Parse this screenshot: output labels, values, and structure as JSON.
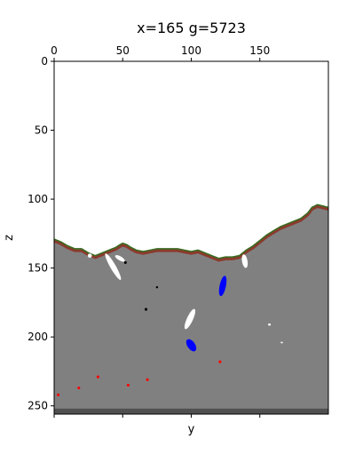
{
  "chart_data": {
    "type": "heatmap",
    "title": "x=165 g=5723",
    "xlabel": "y",
    "ylabel": "z",
    "x_axis_position": "top",
    "x_axis_extent": [
      0,
      200
    ],
    "y_axis_extent": [
      256,
      0
    ],
    "y_inverted": true,
    "x_ticks": [
      0,
      50,
      100,
      150
    ],
    "y_ticks": [
      0,
      50,
      100,
      150,
      200,
      250
    ],
    "grid": false,
    "legend": "none",
    "colors": {
      "air": "#ffffff",
      "stone": "#808080",
      "dirt": "#8b3a2e",
      "grass": "#3a6b1f",
      "ore_blue": "#0000ff",
      "ore_red": "#ff0000",
      "cave": "#ffffff",
      "void": "#000000",
      "bedrock": "#505050"
    },
    "surface_profile": [
      [
        0,
        129
      ],
      [
        5,
        131
      ],
      [
        10,
        134
      ],
      [
        15,
        136
      ],
      [
        20,
        136
      ],
      [
        25,
        139
      ],
      [
        30,
        141
      ],
      [
        35,
        139
      ],
      [
        40,
        137
      ],
      [
        45,
        135
      ],
      [
        48,
        133
      ],
      [
        50,
        132
      ],
      [
        53,
        133
      ],
      [
        56,
        135
      ],
      [
        60,
        137
      ],
      [
        65,
        138
      ],
      [
        70,
        137
      ],
      [
        75,
        136
      ],
      [
        80,
        136
      ],
      [
        85,
        136
      ],
      [
        90,
        136
      ],
      [
        95,
        137
      ],
      [
        100,
        138
      ],
      [
        105,
        137
      ],
      [
        110,
        139
      ],
      [
        115,
        141
      ],
      [
        120,
        143
      ],
      [
        125,
        142
      ],
      [
        130,
        142
      ],
      [
        135,
        141
      ],
      [
        140,
        137
      ],
      [
        145,
        134
      ],
      [
        150,
        130
      ],
      [
        155,
        126
      ],
      [
        160,
        123
      ],
      [
        165,
        120
      ],
      [
        170,
        118
      ],
      [
        175,
        116
      ],
      [
        180,
        114
      ],
      [
        185,
        110
      ],
      [
        188,
        106
      ],
      [
        192,
        104
      ],
      [
        196,
        105
      ],
      [
        200,
        106
      ]
    ],
    "features": [
      {
        "kind": "cave",
        "y": 43,
        "z": 149,
        "ry": 2,
        "rz": 11,
        "angle": -30
      },
      {
        "kind": "cave",
        "y": 48,
        "z": 143,
        "ry": 1.5,
        "rz": 4,
        "angle": -60
      },
      {
        "kind": "cave",
        "y": 99,
        "z": 187,
        "ry": 2.2,
        "rz": 8,
        "angle": 25
      },
      {
        "kind": "cave",
        "y": 139,
        "z": 145,
        "ry": 2,
        "rz": 5,
        "angle": -10
      },
      {
        "kind": "cave",
        "y": 26,
        "z": 141,
        "ry": 1.5,
        "rz": 1.5,
        "angle": 0
      },
      {
        "kind": "cave",
        "y": 157,
        "z": 191,
        "ry": 1,
        "rz": 0.8,
        "angle": 0
      },
      {
        "kind": "cave",
        "y": 166,
        "z": 204,
        "ry": 0.8,
        "rz": 0.6,
        "angle": 0
      },
      {
        "kind": "ore_blue",
        "y": 123,
        "z": 163,
        "ry": 2.3,
        "rz": 7.5,
        "angle": 12
      },
      {
        "kind": "ore_blue",
        "y": 100,
        "z": 206,
        "ry": 2.8,
        "rz": 5,
        "angle": -35
      },
      {
        "kind": "void",
        "y": 52,
        "z": 146,
        "ry": 1,
        "rz": 1,
        "angle": 0
      },
      {
        "kind": "void",
        "y": 67,
        "z": 180,
        "ry": 1,
        "rz": 1,
        "angle": 0
      },
      {
        "kind": "void",
        "y": 75,
        "z": 164,
        "ry": 0.8,
        "rz": 0.8,
        "angle": 0
      },
      {
        "kind": "ore_red",
        "y": 3,
        "z": 242,
        "ry": 1,
        "rz": 1,
        "angle": 0
      },
      {
        "kind": "ore_red",
        "y": 18,
        "z": 237,
        "ry": 1,
        "rz": 1,
        "angle": 0
      },
      {
        "kind": "ore_red",
        "y": 32,
        "z": 229,
        "ry": 1,
        "rz": 1,
        "angle": 0
      },
      {
        "kind": "ore_red",
        "y": 54,
        "z": 235,
        "ry": 1,
        "rz": 1,
        "angle": 0
      },
      {
        "kind": "ore_red",
        "y": 68,
        "z": 231,
        "ry": 1,
        "rz": 1,
        "angle": 0
      },
      {
        "kind": "ore_red",
        "y": 121,
        "z": 218,
        "ry": 1,
        "rz": 1,
        "angle": 0
      }
    ],
    "bedrock_band": [
      252,
      256
    ]
  }
}
